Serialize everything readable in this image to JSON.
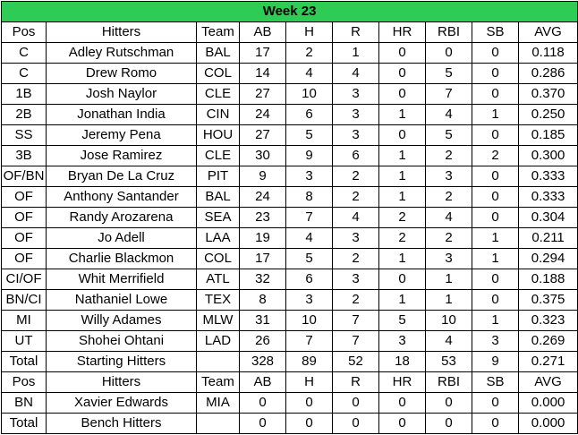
{
  "sheet": {
    "title": "Week 23",
    "title_bg": "#2ecc55",
    "header": [
      "Pos",
      "Hitters",
      "Team",
      "AB",
      "H",
      "R",
      "HR",
      "RBI",
      "SB",
      "AVG"
    ],
    "rows": [
      [
        "C",
        "Adley Rutschman",
        "BAL",
        "17",
        "2",
        "1",
        "0",
        "0",
        "0",
        "0.118"
      ],
      [
        "C",
        "Drew Romo",
        "COL",
        "14",
        "4",
        "4",
        "0",
        "5",
        "0",
        "0.286"
      ],
      [
        "1B",
        "Josh Naylor",
        "CLE",
        "27",
        "10",
        "3",
        "0",
        "7",
        "0",
        "0.370"
      ],
      [
        "2B",
        "Jonathan India",
        "CIN",
        "24",
        "6",
        "3",
        "1",
        "4",
        "1",
        "0.250"
      ],
      [
        "SS",
        "Jeremy Pena",
        "HOU",
        "27",
        "5",
        "3",
        "0",
        "5",
        "0",
        "0.185"
      ],
      [
        "3B",
        "Jose Ramirez",
        "CLE",
        "30",
        "9",
        "6",
        "1",
        "2",
        "2",
        "0.300"
      ],
      [
        "OF/BN",
        "Bryan De La Cruz",
        "PIT",
        "9",
        "3",
        "2",
        "1",
        "3",
        "0",
        "0.333"
      ],
      [
        "OF",
        "Anthony Santander",
        "BAL",
        "24",
        "8",
        "2",
        "1",
        "2",
        "0",
        "0.333"
      ],
      [
        "OF",
        "Randy Arozarena",
        "SEA",
        "23",
        "7",
        "4",
        "2",
        "4",
        "0",
        "0.304"
      ],
      [
        "OF",
        "Jo Adell",
        "LAA",
        "19",
        "4",
        "3",
        "2",
        "2",
        "1",
        "0.211"
      ],
      [
        "OF",
        "Charlie Blackmon",
        "COL",
        "17",
        "5",
        "2",
        "1",
        "3",
        "1",
        "0.294"
      ],
      [
        "CI/OF",
        "Whit Merrifield",
        "ATL",
        "32",
        "6",
        "3",
        "0",
        "1",
        "0",
        "0.188"
      ],
      [
        "BN/CI",
        "Nathaniel Lowe",
        "TEX",
        "8",
        "3",
        "2",
        "1",
        "1",
        "0",
        "0.375"
      ],
      [
        "MI",
        "Willy Adames",
        "MLW",
        "31",
        "10",
        "7",
        "5",
        "10",
        "1",
        "0.323"
      ],
      [
        "UT",
        "Shohei Ohtani",
        "LAD",
        "26",
        "7",
        "7",
        "3",
        "4",
        "3",
        "0.269"
      ]
    ],
    "total_starting": [
      "Total",
      "Starting Hitters",
      "",
      "328",
      "89",
      "52",
      "18",
      "53",
      "9",
      "0.271"
    ],
    "bench_header": [
      "Pos",
      "Hitters",
      "Team",
      "AB",
      "H",
      "R",
      "HR",
      "RBI",
      "SB",
      "AVG"
    ],
    "bench_rows": [
      [
        "BN",
        "Xavier Edwards",
        "MIA",
        "0",
        "0",
        "0",
        "0",
        "0",
        "0",
        "0.000"
      ]
    ],
    "total_bench": [
      "Total",
      "Bench Hitters",
      "",
      "0",
      "0",
      "0",
      "0",
      "0",
      "0",
      "0.000"
    ]
  }
}
